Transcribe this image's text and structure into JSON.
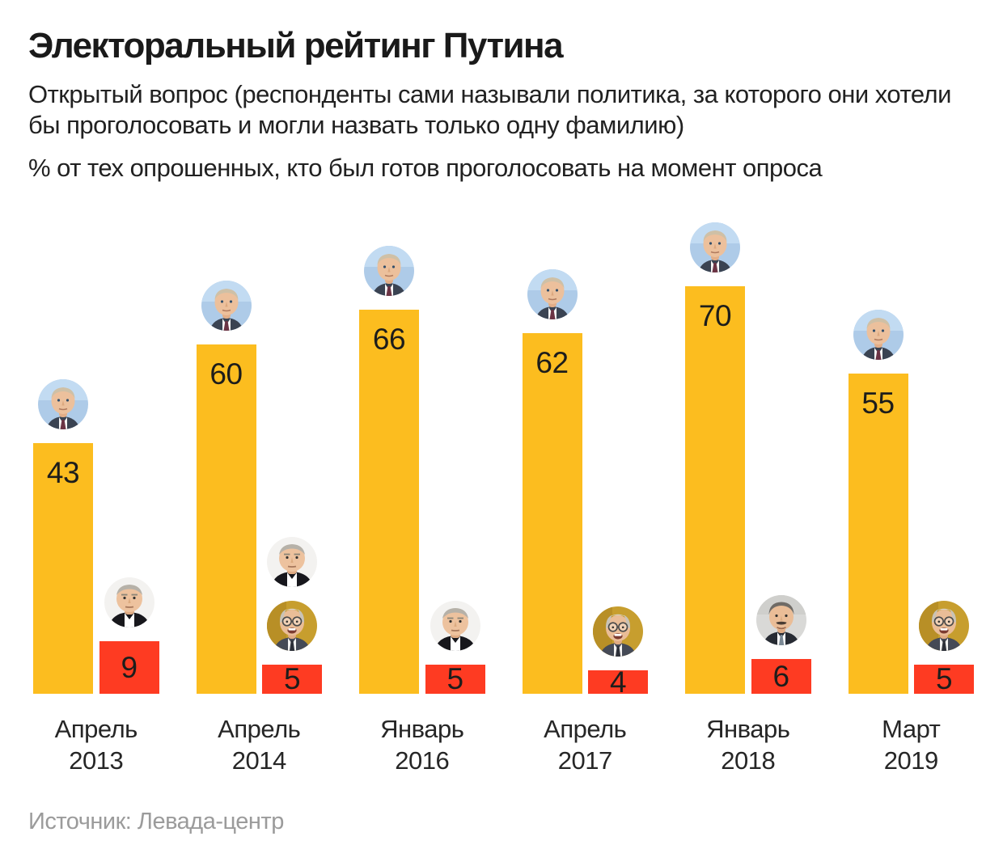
{
  "header": {
    "title": "Электоральный рейтинг Путина",
    "subtitle": "Открытый вопрос (респонденты сами называли политика, за которого они хотели бы проголосовать и могли назвать только одну фамилию)",
    "note": "% от тех опрошенных, кто был готов проголосовать на момент опроса"
  },
  "source": "Источник: Левада-центр",
  "colors": {
    "putin_bar": "#fcbd1f",
    "rival_bar": "#fe3b22",
    "title_text": "#1a1a1a",
    "body_text": "#212121",
    "source_text": "#9b9b9b"
  },
  "icons": {
    "putin": "putin-avatar",
    "zyuganov": "zyuganov-avatar",
    "zhirinovsky": "zhirinovsky-avatar",
    "grudinin": "grudinin-avatar"
  },
  "chart_data": {
    "type": "bar",
    "title": "Электоральный рейтинг Путина",
    "value_unit": "%",
    "ylim": [
      0,
      70
    ],
    "grid": false,
    "legend": "none — series identified by circular portrait photos above each bar",
    "categories": [
      {
        "month": "Апрель",
        "year": "2013"
      },
      {
        "month": "Апрель",
        "year": "2014"
      },
      {
        "month": "Январь",
        "year": "2016"
      },
      {
        "month": "Апрель",
        "year": "2017"
      },
      {
        "month": "Январь",
        "year": "2018"
      },
      {
        "month": "Март",
        "year": "2019"
      }
    ],
    "series": [
      {
        "name": "Путин",
        "color": "#fcbd1f",
        "values": [
          43,
          60,
          66,
          62,
          70,
          55
        ],
        "portraits": [
          [
            "putin"
          ],
          [
            "putin"
          ],
          [
            "putin"
          ],
          [
            "putin"
          ],
          [
            "putin"
          ],
          [
            "putin"
          ]
        ]
      },
      {
        "name": "runner_up",
        "color": "#fe3b22",
        "values": [
          9,
          5,
          5,
          4,
          6,
          5
        ],
        "portraits": [
          [
            "zyuganov"
          ],
          [
            "zyuganov",
            "zhirinovsky"
          ],
          [
            "zyuganov"
          ],
          [
            "zhirinovsky"
          ],
          [
            "grudinin"
          ],
          [
            "zhirinovsky"
          ]
        ]
      }
    ]
  }
}
